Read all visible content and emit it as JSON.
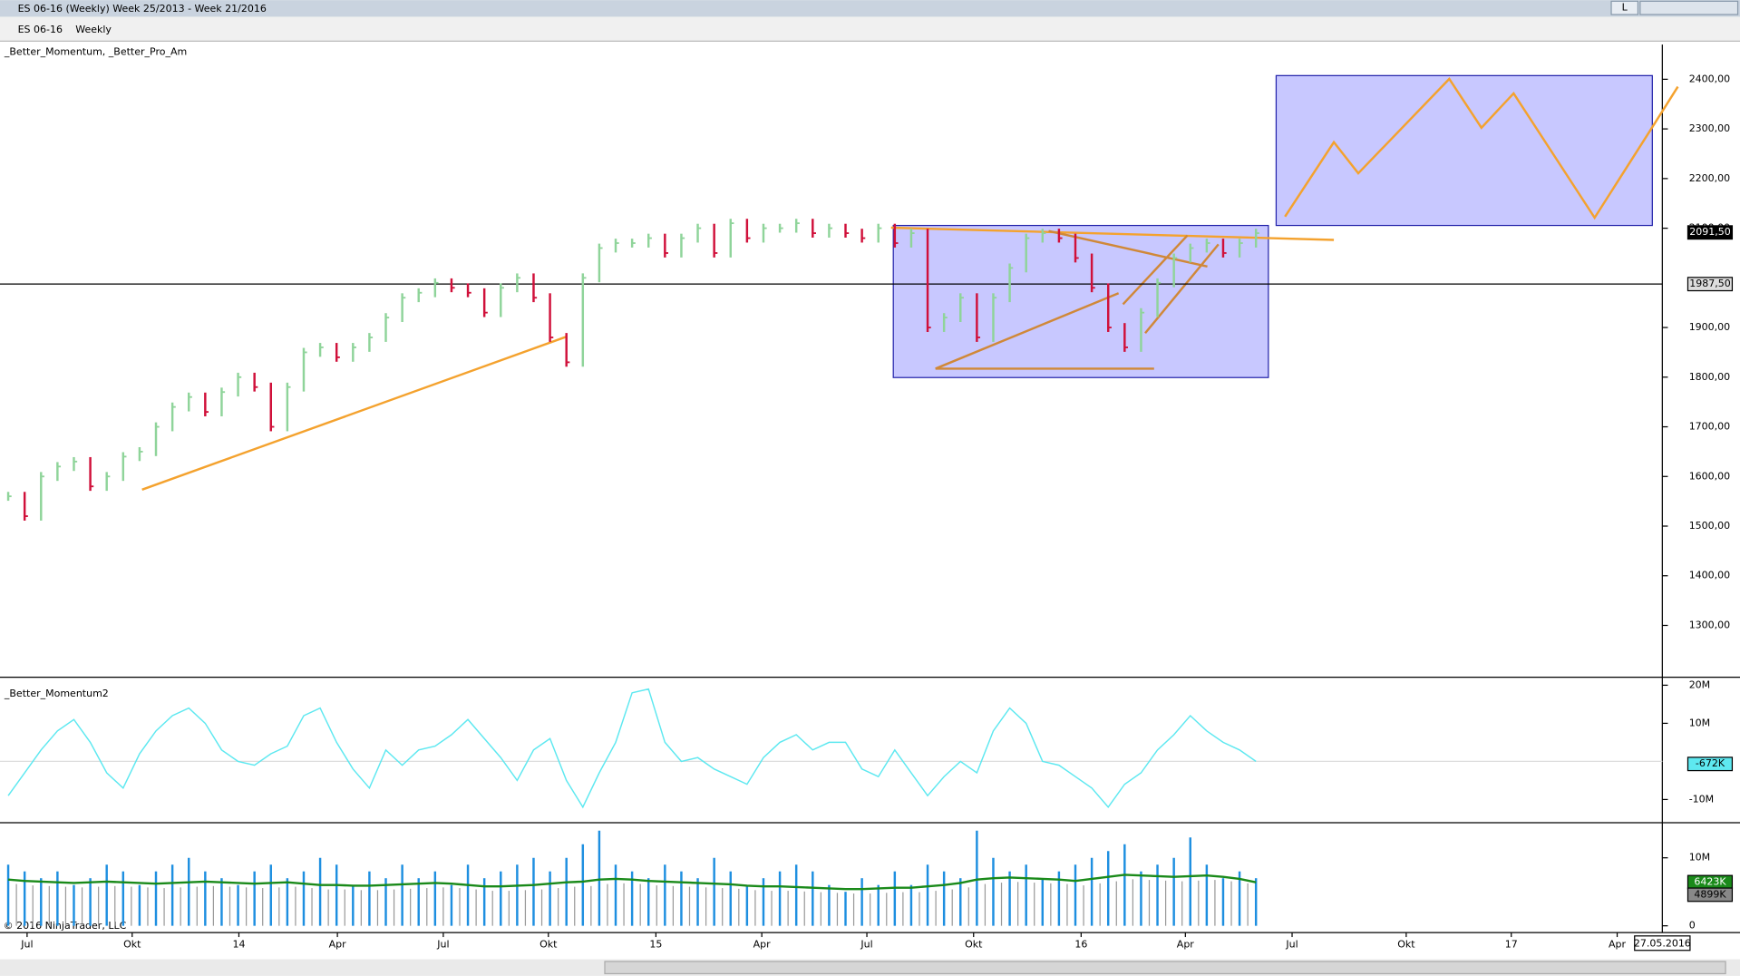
{
  "window": {
    "title": "ES 06-16 (Weekly)  Week 25/2013 - Week 21/2016",
    "button": "L"
  },
  "toolbar": {
    "instrument": "ES 06-16",
    "period": "Weekly"
  },
  "copyright": "© 2016 NinjaTrader, LLC",
  "date_label": "27.05.2016",
  "chart_data": [
    {
      "type": "bar",
      "title": "_Better_Momentum, _Better_Pro_Am",
      "x": [
        0,
        2,
        4,
        6,
        8,
        10,
        12,
        14,
        16,
        18,
        20,
        22,
        24,
        26,
        28,
        30,
        32,
        34,
        36,
        38,
        40,
        42,
        44,
        46,
        48,
        50,
        52,
        54,
        56,
        58,
        60,
        62,
        64,
        66,
        68,
        70,
        72,
        74,
        76,
        78,
        80,
        82,
        84,
        86,
        88,
        90,
        92,
        94,
        96,
        98,
        100,
        102,
        104,
        106,
        108,
        110,
        112,
        114,
        116,
        118,
        120,
        122,
        124,
        126,
        128,
        130,
        132,
        134,
        136,
        138,
        140,
        142,
        144,
        146,
        148,
        150,
        152
      ],
      "values": [
        1560,
        1520,
        1600,
        1620,
        1630,
        1580,
        1600,
        1640,
        1650,
        1700,
        1740,
        1760,
        1730,
        1770,
        1800,
        1780,
        1700,
        1780,
        1850,
        1860,
        1840,
        1860,
        1880,
        1920,
        1960,
        1970,
        1990,
        1980,
        1970,
        1930,
        1980,
        2000,
        1960,
        1880,
        1830,
        2000,
        2060,
        2070,
        2070,
        2080,
        2050,
        2080,
        2100,
        2050,
        2110,
        2080,
        2100,
        2100,
        2110,
        2090,
        2100,
        2090,
        2080,
        2100,
        2070,
        2090,
        1900,
        1920,
        1960,
        1880,
        1960,
        2020,
        2080,
        2090,
        2080,
        2040,
        1980,
        1900,
        1860,
        1930,
        1990,
        2040,
        2060,
        2070,
        2050,
        2070,
        2090
      ],
      "up_color": "#8fd49a",
      "down_color": "#d0103a",
      "xlim": [
        -1,
        201.5
      ],
      "xticks": [
        {
          "value": 2.3,
          "label": "Jul"
        },
        {
          "value": 15.1,
          "label": "Okt"
        },
        {
          "value": 28.1,
          "label": "14"
        },
        {
          "value": 40.1,
          "label": "Apr"
        },
        {
          "value": 53,
          "label": "Jul"
        },
        {
          "value": 65.8,
          "label": "Okt"
        },
        {
          "value": 78.9,
          "label": "15"
        },
        {
          "value": 91.8,
          "label": "Apr"
        },
        {
          "value": 104.6,
          "label": "Jul"
        },
        {
          "value": 117.6,
          "label": "Okt"
        },
        {
          "value": 130.7,
          "label": "16"
        },
        {
          "value": 143.4,
          "label": "Apr"
        },
        {
          "value": 156.4,
          "label": "Jul"
        },
        {
          "value": 170.3,
          "label": "Okt"
        },
        {
          "value": 183.1,
          "label": "17"
        },
        {
          "value": 196,
          "label": "Apr"
        }
      ],
      "ylim": [
        1200,
        2470
      ],
      "yticks": [
        {
          "value": 1300,
          "label": "1300,00"
        },
        {
          "value": 1400,
          "label": "1400,00"
        },
        {
          "value": 1500,
          "label": "1500,00"
        },
        {
          "value": 1600,
          "label": "1600,00"
        },
        {
          "value": 1700,
          "label": "1700,00"
        },
        {
          "value": 1800,
          "label": "1800,00"
        },
        {
          "value": 1900,
          "label": "1900,00"
        },
        {
          "value": 2100,
          "label": "2100,00"
        },
        {
          "value": 2200,
          "label": "2200,00"
        },
        {
          "value": 2300,
          "label": "2300,00"
        },
        {
          "value": 2400,
          "label": "2400,00"
        }
      ],
      "last": {
        "value": 2091.5,
        "label": "2091,50"
      },
      "hline": {
        "value": 1987.5,
        "label": "1987,50"
      }
    },
    {
      "type": "line",
      "title": "_Better_Momentum2",
      "color": "#5ee8f0",
      "values": [
        -9,
        -3,
        3,
        8,
        11,
        5,
        -3,
        -7,
        2,
        8,
        12,
        14,
        10,
        3,
        0,
        -1,
        2,
        4,
        12,
        14,
        5,
        -2,
        -7,
        3,
        -1,
        3,
        4,
        7,
        11,
        6,
        1,
        -5,
        3,
        6,
        -5,
        -12,
        -3,
        5,
        18,
        19,
        5,
        0,
        1,
        -2,
        -4,
        -6,
        1,
        5,
        7,
        3,
        5,
        5,
        -2,
        -4,
        3,
        -3,
        -9,
        -4,
        0,
        -3,
        8,
        14,
        10,
        0,
        -1,
        -4,
        -7,
        -12,
        -6,
        -3,
        3,
        7,
        12,
        8,
        5,
        3,
        0
      ],
      "ylim": [
        -15.8,
        21.5
      ],
      "yticks": [
        {
          "value": 20,
          "label": "20M"
        },
        {
          "value": 10,
          "label": "10M"
        },
        {
          "value": -10,
          "label": "-10M"
        }
      ],
      "last": {
        "value": -0.672,
        "label": "-672K"
      }
    },
    {
      "type": "volume",
      "series": [
        {
          "color": "#1e8fe0",
          "values": [
            9,
            8,
            7,
            8,
            6,
            7,
            9,
            8,
            6,
            8,
            9,
            10,
            8,
            7,
            6,
            8,
            9,
            7,
            8,
            10,
            9,
            6,
            8,
            7,
            9,
            7,
            8,
            6,
            9,
            7,
            8,
            9,
            10,
            8,
            10,
            12,
            14,
            9,
            8,
            7,
            9,
            8,
            7,
            10,
            8,
            6,
            7,
            8,
            9,
            8,
            6,
            5,
            7,
            6,
            8,
            6,
            9,
            8,
            7,
            14,
            10,
            8,
            9,
            7,
            8,
            9,
            10,
            11,
            12,
            8,
            9,
            10,
            13,
            9,
            7,
            8,
            7
          ]
        },
        {
          "color": "#1a8a1a",
          "values": [
            6.8,
            6.6,
            6.5,
            6.4,
            6.3,
            6.4,
            6.5,
            6.4,
            6.3,
            6.2,
            6.3,
            6.4,
            6.5,
            6.4,
            6.3,
            6.2,
            6.3,
            6.4,
            6.2,
            6.0,
            6.0,
            5.9,
            5.9,
            6.0,
            6.1,
            6.2,
            6.3,
            6.2,
            6.0,
            5.8,
            5.8,
            5.9,
            6.0,
            6.2,
            6.4,
            6.5,
            6.8,
            6.9,
            6.8,
            6.6,
            6.5,
            6.4,
            6.3,
            6.2,
            6.1,
            5.9,
            5.8,
            5.8,
            5.7,
            5.6,
            5.5,
            5.4,
            5.4,
            5.5,
            5.6,
            5.6,
            5.8,
            6.0,
            6.3,
            6.8,
            7.0,
            7.1,
            7.0,
            6.9,
            6.8,
            6.6,
            6.9,
            7.2,
            7.5,
            7.4,
            7.3,
            7.2,
            7.3,
            7.4,
            7.2,
            6.9,
            6.4
          ]
        }
      ],
      "ylim": [
        -1,
        15
      ],
      "yticks": [
        {
          "value": 10,
          "label": "10M"
        },
        {
          "value": 0,
          "label": "0"
        }
      ],
      "last": [
        {
          "value": 6.423,
          "label": "6423K"
        },
        {
          "value": 4.899,
          "label": "4899K"
        }
      ]
    }
  ]
}
